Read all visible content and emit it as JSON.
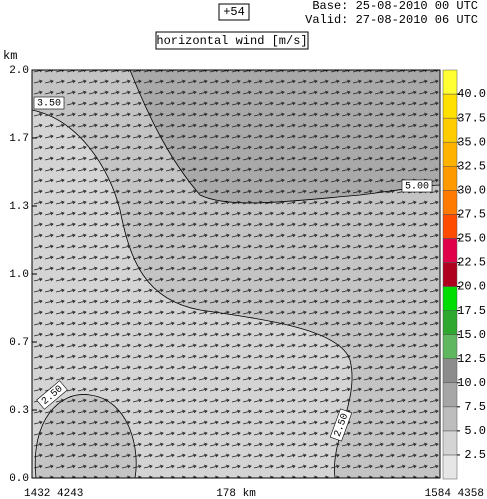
{
  "chart_data": {
    "type": "contour",
    "run_label": "+54",
    "base": "Base: 25-08-2010  00 UTC",
    "valid": "Valid: 27-08-2010  06 UTC",
    "title": "horizontal wind [m/s]",
    "y_label": "km",
    "x_labels": [
      "1432  4243",
      "178 km",
      "1584  4358"
    ],
    "ylim": [
      0,
      2
    ],
    "yticks": [
      {
        "value": 0,
        "label": "0.0"
      },
      {
        "value": 0.3333,
        "label": "0.3"
      },
      {
        "value": 0.6667,
        "label": "0.7"
      },
      {
        "value": 1,
        "label": "1.0"
      },
      {
        "value": 1.3333,
        "label": "1.3"
      },
      {
        "value": 1.6667,
        "label": "1.7"
      },
      {
        "value": 2,
        "label": "2.0"
      }
    ],
    "contour_labels": [
      "3.50",
      "5.00",
      "2.50",
      "2.50"
    ],
    "colorbar": {
      "bins": [
        0,
        2.5,
        5,
        7.5,
        10,
        12.5,
        15,
        17.5,
        20,
        22.5,
        25,
        27.5,
        30,
        32.5,
        35,
        37.5,
        40,
        42.5
      ],
      "colors": [
        "#e6e6e6",
        "#d4d4d4",
        "#bdbdbd",
        "#a6a6a6",
        "#8c8c8c",
        "#5fb85f",
        "#2ea82e",
        "#00dd00",
        "#b00020",
        "#e0004a",
        "#ff4c00",
        "#ff7a00",
        "#ff9900",
        "#ffb300",
        "#ffcc00",
        "#ffe000",
        "#ffff33"
      ],
      "ticks": [
        2.5,
        {
          "value": 5,
          "label": "5.0"
        },
        7.5,
        {
          "value": 10,
          "label": "10.0"
        },
        12.5,
        {
          "value": 15,
          "label": "15.0"
        },
        17.5,
        {
          "value": 20,
          "label": "20.0"
        },
        22.5,
        {
          "value": 25,
          "label": "25.0"
        },
        27.5,
        {
          "value": 30,
          "label": "30.0"
        },
        32.5,
        {
          "value": 35,
          "label": "35.0"
        },
        37.5,
        {
          "value": 40,
          "label": "40.0"
        }
      ]
    }
  }
}
